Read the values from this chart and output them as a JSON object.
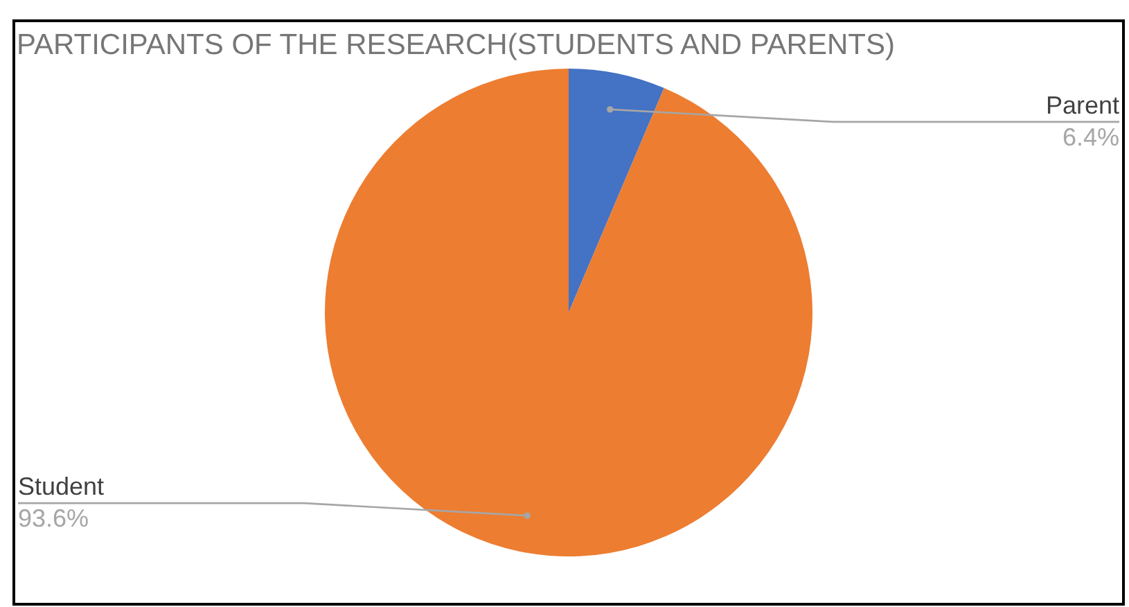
{
  "chart_data": {
    "type": "pie",
    "title": "PARTICIPANTS OF THE RESEARCH(STUDENTS AND PARENTS)",
    "categories": [
      "Parent",
      "Student"
    ],
    "values": [
      6.4,
      93.6
    ],
    "colors": [
      "#4472c4",
      "#ed7d31"
    ],
    "value_labels": [
      "6.4%",
      "93.6%"
    ]
  }
}
